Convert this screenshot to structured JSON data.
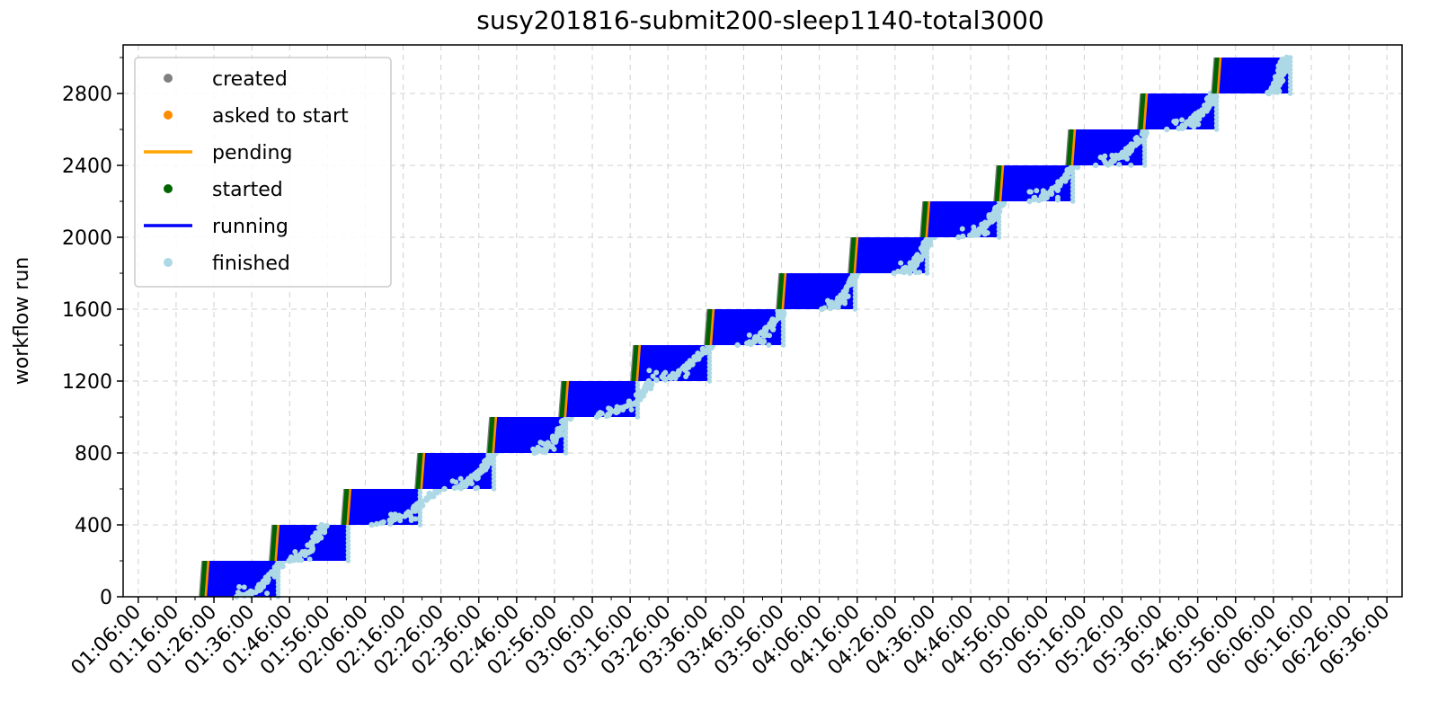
{
  "chart_data": {
    "type": "scatter",
    "title": "susy201816-submit200-sleep1140-total3000",
    "xlabel": "",
    "ylabel": "workflow run",
    "x_range": [
      "01:02:00",
      "06:40:00"
    ],
    "ylim": [
      0,
      3070
    ],
    "x_ticks": [
      "01:06:00",
      "01:16:00",
      "01:26:00",
      "01:36:00",
      "01:46:00",
      "01:56:00",
      "02:06:00",
      "02:16:00",
      "02:26:00",
      "02:36:00",
      "02:46:00",
      "02:56:00",
      "03:06:00",
      "03:16:00",
      "03:26:00",
      "03:36:00",
      "03:46:00",
      "03:56:00",
      "04:06:00",
      "04:16:00",
      "04:26:00",
      "04:36:00",
      "04:46:00",
      "04:56:00",
      "05:06:00",
      "05:16:00",
      "05:26:00",
      "05:36:00",
      "05:46:00",
      "05:56:00",
      "06:06:00",
      "06:16:00",
      "06:26:00",
      "06:36:00"
    ],
    "y_ticks": [
      0,
      400,
      800,
      1200,
      1600,
      2000,
      2400,
      2800
    ],
    "grid": true,
    "legend_position": "top-left",
    "legend": [
      {
        "label": "created",
        "marker": "dot",
        "color": "#808080"
      },
      {
        "label": "asked to start",
        "marker": "dot",
        "color": "#ff8c00"
      },
      {
        "label": "pending",
        "marker": "line",
        "color": "#ffa500"
      },
      {
        "label": "started",
        "marker": "dot",
        "color": "#006400"
      },
      {
        "label": "running",
        "marker": "line",
        "color": "#0000ff"
      },
      {
        "label": "finished",
        "marker": "dot",
        "color": "#add8e6"
      }
    ],
    "batches": [
      {
        "runs": [
          0,
          200
        ],
        "created": "01:22:00",
        "started": "01:23:30",
        "running_until": "01:42:30",
        "finished_span": [
          "01:32:00",
          "01:44:00"
        ]
      },
      {
        "runs": [
          200,
          400
        ],
        "created": "01:40:30",
        "started": "01:42:00",
        "running_until": "02:01:00",
        "finished_span": [
          "01:46:00",
          "01:55:00"
        ]
      },
      {
        "runs": [
          400,
          600
        ],
        "created": "01:59:30",
        "started": "02:01:00",
        "running_until": "02:20:00",
        "finished_span": [
          "02:07:00",
          "02:25:00"
        ]
      },
      {
        "runs": [
          600,
          800
        ],
        "created": "02:19:00",
        "started": "02:20:30",
        "running_until": "02:39:30",
        "finished_span": [
          "02:28:00",
          "02:40:00"
        ]
      },
      {
        "runs": [
          800,
          1000
        ],
        "created": "02:38:00",
        "started": "02:39:30",
        "running_until": "02:58:30",
        "finished_span": [
          "02:50:00",
          "02:59:30"
        ]
      },
      {
        "runs": [
          1000,
          1200
        ],
        "created": "02:57:00",
        "started": "02:58:30",
        "running_until": "03:17:30",
        "finished_span": [
          "03:07:00",
          "03:22:00"
        ]
      },
      {
        "runs": [
          1200,
          1400
        ],
        "created": "03:16:00",
        "started": "03:17:30",
        "running_until": "03:36:30",
        "finished_span": [
          "03:21:00",
          "03:37:00"
        ]
      },
      {
        "runs": [
          1400,
          1600
        ],
        "created": "03:35:30",
        "started": "03:37:00",
        "running_until": "03:56:00",
        "finished_span": [
          "03:45:00",
          "03:56:30"
        ]
      },
      {
        "runs": [
          1600,
          1800
        ],
        "created": "03:54:30",
        "started": "03:56:00",
        "running_until": "04:15:00",
        "finished_span": [
          "04:07:00",
          "04:16:00"
        ]
      },
      {
        "runs": [
          1800,
          2000
        ],
        "created": "04:13:30",
        "started": "04:15:00",
        "running_until": "04:34:00",
        "finished_span": [
          "04:26:00",
          "04:35:30"
        ]
      },
      {
        "runs": [
          2000,
          2200
        ],
        "created": "04:32:30",
        "started": "04:34:00",
        "running_until": "04:53:00",
        "finished_span": [
          "04:43:00",
          "04:54:30"
        ]
      },
      {
        "runs": [
          2200,
          2400
        ],
        "created": "04:52:00",
        "started": "04:53:30",
        "running_until": "05:12:30",
        "finished_span": [
          "05:01:00",
          "05:13:30"
        ]
      },
      {
        "runs": [
          2400,
          2600
        ],
        "created": "05:11:00",
        "started": "05:12:30",
        "running_until": "05:31:30",
        "finished_span": [
          "05:19:00",
          "05:32:30"
        ]
      },
      {
        "runs": [
          2600,
          2800
        ],
        "created": "05:30:00",
        "started": "05:31:30",
        "running_until": "05:50:30",
        "finished_span": [
          "05:39:00",
          "05:50:30"
        ]
      },
      {
        "runs": [
          2800,
          3000
        ],
        "created": "05:49:30",
        "started": "05:51:00",
        "running_until": "06:10:00",
        "finished_span": [
          "06:05:00",
          "06:09:00"
        ]
      }
    ]
  }
}
